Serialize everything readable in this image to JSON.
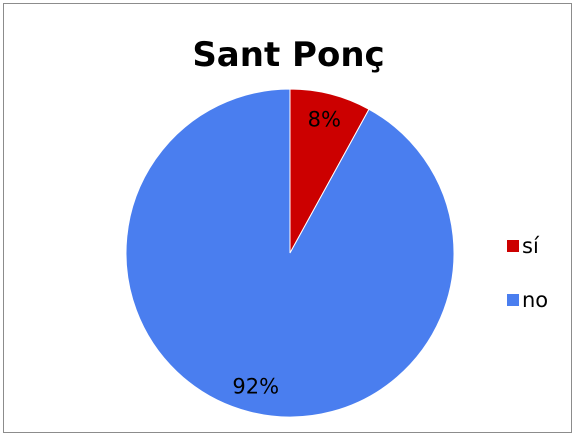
{
  "chart_data": {
    "type": "pie",
    "title": "Sant Ponç",
    "categories": [
      "sí",
      "no"
    ],
    "values": [
      8,
      92
    ],
    "labels": [
      "8%",
      "92%"
    ],
    "colors": [
      "#cc0000",
      "#4a7eef"
    ],
    "legend_position": "right"
  }
}
